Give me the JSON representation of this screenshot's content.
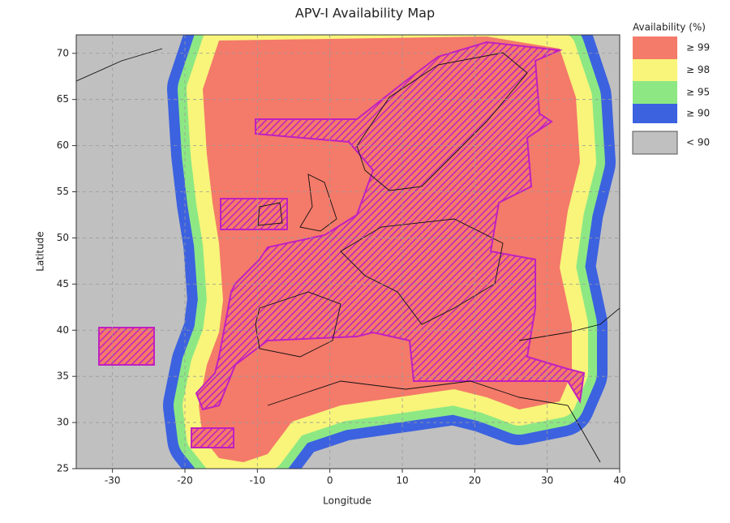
{
  "chart_data": {
    "type": "map",
    "title": "APV-I Availability Map",
    "x_label": "Longitude",
    "y_label": "Latitude",
    "xlim": [
      -35,
      40
    ],
    "ylim": [
      25,
      72
    ],
    "xticks": [
      -30,
      -20,
      -10,
      0,
      10,
      20,
      30,
      40
    ],
    "yticks": [
      25,
      30,
      35,
      40,
      45,
      50,
      55,
      60,
      65,
      70
    ],
    "grid": true,
    "legend": {
      "title": "Availability (%)",
      "position": "right",
      "items": [
        {
          "label": "≥ 99",
          "color": "#f47a6a"
        },
        {
          "label": "≥ 98",
          "color": "#f8f57a"
        },
        {
          "label": "≥ 95",
          "color": "#8de884"
        },
        {
          "label": "≥ 90",
          "color": "#3c62e0"
        },
        {
          "label": "< 90",
          "color": "#c0c0c0"
        }
      ]
    }
  }
}
